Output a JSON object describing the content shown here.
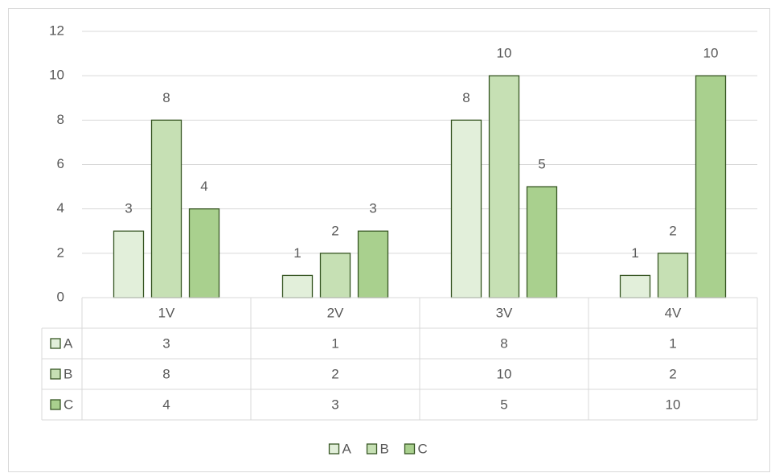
{
  "chart_data": {
    "type": "bar",
    "categories": [
      "1V",
      "2V",
      "3V",
      "4V"
    ],
    "series": [
      {
        "name": "A",
        "color": "#e2efda",
        "values": [
          3,
          1,
          8,
          1
        ]
      },
      {
        "name": "B",
        "color": "#c6e0b4",
        "values": [
          8,
          2,
          10,
          2
        ]
      },
      {
        "name": "C",
        "color": "#a9d08e",
        "values": [
          4,
          3,
          5,
          10
        ]
      }
    ],
    "ylim": [
      0,
      12
    ],
    "yticks": [
      0,
      2,
      4,
      6,
      8,
      10,
      12
    ],
    "grid": true,
    "data_table": true,
    "legend": "bottom",
    "data_labels": true
  }
}
